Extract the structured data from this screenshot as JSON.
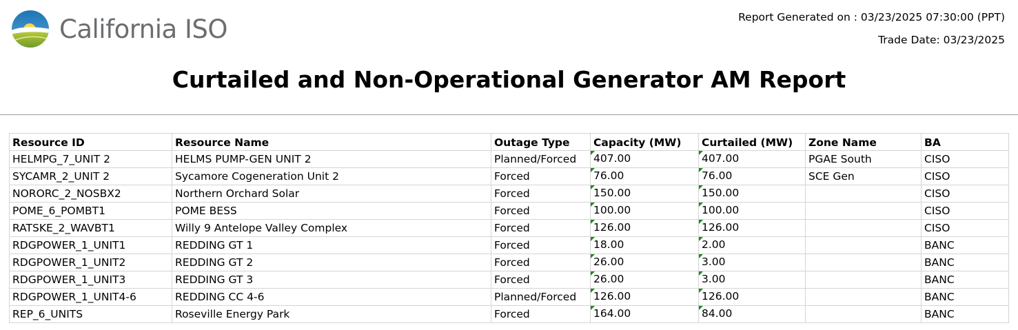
{
  "header": {
    "logo_text": "California ISO",
    "report_generated": "Report Generated on : 03/23/2025 07:30:00 (PPT)",
    "trade_date": "Trade Date: 03/23/2025",
    "title": "Curtailed and Non-Operational Generator AM Report"
  },
  "colors": {
    "logo_text": "#6b6e70",
    "number_cell_marker": "#1a8a1a",
    "grid_line": "#d4d4d4"
  },
  "table": {
    "columns": [
      "Resource ID",
      "Resource Name",
      "Outage Type",
      "Capacity (MW)",
      "Curtailed (MW)",
      "Zone Name",
      "BA"
    ],
    "rows": [
      [
        "HELMPG_7_UNIT 2",
        "HELMS PUMP-GEN UNIT 2",
        "Planned/Forced",
        "407.00",
        "407.00",
        "PGAE South",
        "CISO"
      ],
      [
        "SYCAMR_2_UNIT 2",
        "Sycamore Cogeneration Unit 2",
        "Forced",
        "76.00",
        "76.00",
        "SCE Gen",
        "CISO"
      ],
      [
        "NORORC_2_NOSBX2",
        "Northern Orchard Solar",
        "Forced",
        "150.00",
        "150.00",
        "",
        "CISO"
      ],
      [
        "POME_6_POMBT1",
        "POME BESS",
        "Forced",
        "100.00",
        "100.00",
        "",
        "CISO"
      ],
      [
        "RATSKE_2_WAVBT1",
        "Willy 9 Antelope Valley Complex",
        "Forced",
        "126.00",
        "126.00",
        "",
        "CISO"
      ],
      [
        "RDGPOWER_1_UNIT1",
        "REDDING GT 1",
        "Forced",
        "18.00",
        "2.00",
        "",
        "BANC"
      ],
      [
        "RDGPOWER_1_UNIT2",
        "REDDING GT 2",
        "Forced",
        "26.00",
        "3.00",
        "",
        "BANC"
      ],
      [
        "RDGPOWER_1_UNIT3",
        "REDDING GT 3",
        "Forced",
        "26.00",
        "3.00",
        "",
        "BANC"
      ],
      [
        "RDGPOWER_1_UNIT4-6",
        "REDDING CC 4-6",
        "Planned/Forced",
        "126.00",
        "126.00",
        "",
        "BANC"
      ],
      [
        "REP_6_UNITS",
        "Roseville Energy Park",
        "Forced",
        "164.00",
        "84.00",
        "",
        "BANC"
      ]
    ]
  }
}
